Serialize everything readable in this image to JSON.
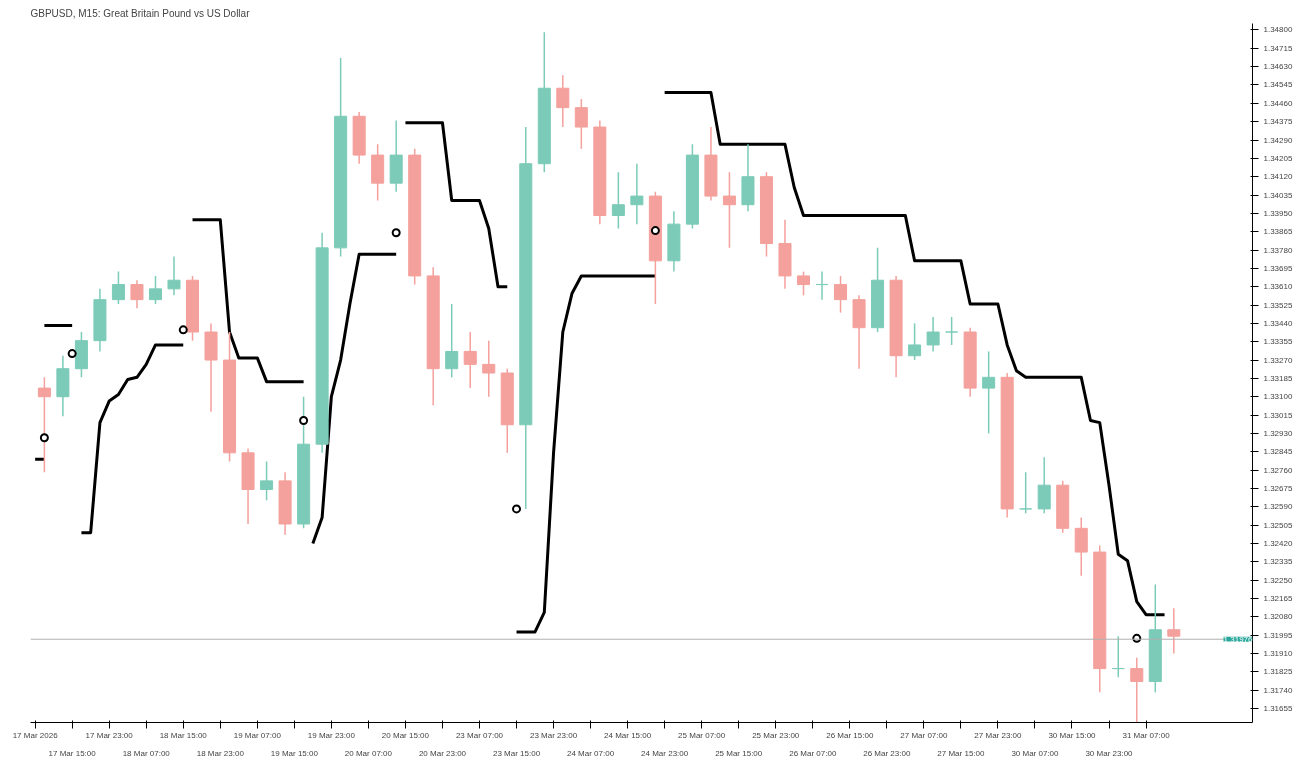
{
  "chart_data": {
    "type": "candlestick",
    "title": "GBPUSD, M15: Great Britain Pound vs US Dollar",
    "categories": [
      "17 Mar 2026",
      null,
      null,
      null,
      "17 Mar 15:00",
      null,
      null,
      null,
      "17 Mar 23:00",
      null,
      null,
      null,
      "18 Mar 07:00",
      null,
      null,
      null,
      "18 Mar 15:00",
      null,
      null,
      null,
      "18 Mar 23:00",
      null,
      null,
      null,
      "19 Mar 07:00",
      null,
      null,
      null,
      "19 Mar 15:00",
      null,
      null,
      null,
      "19 Mar 23:00",
      null,
      null,
      null,
      "20 Mar 07:00",
      null,
      null,
      null,
      "20 Mar 15:00",
      null,
      null,
      null,
      "20 Mar 23:00",
      null,
      null,
      null,
      "23 Mar 07:00",
      null,
      null,
      null,
      "23 Mar 15:00",
      null,
      null,
      null,
      "23 Mar 23:00",
      null,
      null,
      null,
      "24 Mar 07:00",
      null,
      null,
      null,
      "24 Mar 15:00",
      null,
      null,
      null,
      "24 Mar 23:00",
      null,
      null,
      null,
      "25 Mar 07:00",
      null,
      null,
      null,
      "25 Mar 15:00",
      null,
      null,
      null,
      "25 Mar 23:00",
      null,
      null,
      null,
      "26 Mar 07:00",
      null,
      null,
      null,
      "26 Mar 15:00",
      null,
      null,
      null,
      "26 Mar 23:00",
      null,
      null,
      null,
      "27 Mar 07:00",
      null,
      null,
      null,
      "27 Mar 15:00",
      null,
      null,
      null,
      "27 Mar 23:00",
      null,
      null,
      null,
      "30 Mar 07:00",
      null,
      null,
      null,
      "30 Mar 15:00",
      null,
      null,
      null,
      "30 Mar 23:00",
      null,
      null,
      null,
      "31 Mar 07:00",
      null,
      null,
      null,
      null,
      null,
      null,
      null,
      null,
      null,
      null,
      null
    ],
    "ohlc": [
      null,
      [
        1.3314,
        1.3319,
        1.3275,
        1.331
      ],
      null,
      [
        1.331,
        1.3329,
        1.3301,
        1.3323
      ],
      null,
      [
        1.3323,
        1.334,
        1.3319,
        1.3336
      ],
      null,
      [
        1.3336,
        1.336,
        1.3331,
        1.3355
      ],
      null,
      [
        1.3355,
        1.3368,
        1.3353,
        1.3362
      ],
      null,
      [
        1.3362,
        1.3364,
        1.3351,
        1.3355
      ],
      null,
      [
        1.3355,
        1.3366,
        1.3353,
        1.336
      ],
      null,
      [
        1.336,
        1.3375,
        1.3357,
        1.3364
      ],
      null,
      [
        1.3364,
        1.3366,
        1.3336,
        1.334
      ],
      null,
      [
        1.334,
        1.3344,
        1.3303,
        1.3327
      ],
      null,
      [
        1.3327,
        1.334,
        1.328,
        1.3284
      ],
      null,
      [
        1.3284,
        1.3286,
        1.3251,
        1.3267
      ],
      null,
      [
        1.3267,
        1.328,
        1.3262,
        1.3271
      ],
      null,
      [
        1.3271,
        1.3275,
        1.3246,
        1.3251
      ],
      null,
      [
        1.3251,
        1.331,
        1.3249,
        1.3288
      ],
      null,
      [
        1.3288,
        1.3386,
        1.3284,
        1.3379
      ],
      null,
      [
        1.3379,
        1.3467,
        1.3375,
        1.344
      ],
      null,
      [
        1.344,
        1.3442,
        1.3418,
        1.3422
      ],
      null,
      [
        1.3422,
        1.3427,
        1.3401,
        1.3409
      ],
      null,
      [
        1.3409,
        1.3438,
        1.3405,
        1.3422
      ],
      null,
      [
        1.3422,
        1.3425,
        1.3362,
        1.3366
      ],
      null,
      [
        1.3366,
        1.337,
        1.3306,
        1.3323
      ],
      null,
      [
        1.3323,
        1.3353,
        1.3319,
        1.3331
      ],
      null,
      [
        1.3331,
        1.334,
        1.3314,
        1.3325
      ],
      null,
      [
        1.3325,
        1.3336,
        1.331,
        1.3321
      ],
      null,
      [
        1.3321,
        1.3323,
        1.3284,
        1.3297
      ],
      null,
      [
        1.3297,
        1.3435,
        1.3258,
        1.3418
      ],
      null,
      [
        1.3418,
        1.3479,
        1.3414,
        1.3453
      ],
      null,
      [
        1.3453,
        1.3459,
        1.3435,
        1.3444
      ],
      null,
      [
        1.3444,
        1.3448,
        1.3425,
        1.3435
      ],
      null,
      [
        1.3435,
        1.3438,
        1.339,
        1.3394
      ],
      null,
      [
        1.3394,
        1.3414,
        1.3388,
        1.3399
      ],
      null,
      [
        1.3399,
        1.3418,
        1.339,
        1.3403
      ],
      null,
      [
        1.3403,
        1.3405,
        1.3353,
        1.3373
      ],
      null,
      [
        1.3373,
        1.3396,
        1.3368,
        1.339
      ],
      null,
      [
        1.339,
        1.3427,
        1.3388,
        1.3422
      ],
      null,
      [
        1.3422,
        1.3435,
        1.3401,
        1.3403
      ],
      null,
      [
        1.3403,
        1.3414,
        1.3379,
        1.3399
      ],
      null,
      [
        1.3399,
        1.3427,
        1.3396,
        1.3412
      ],
      null,
      [
        1.3412,
        1.3414,
        1.3375,
        1.3381
      ],
      null,
      [
        1.3381,
        1.3392,
        1.336,
        1.3366
      ],
      null,
      [
        1.3366,
        1.3368,
        1.3357,
        1.3362
      ],
      null,
      [
        1.3362,
        1.3368,
        1.3355,
        1.3362
      ],
      null,
      [
        1.3362,
        1.3366,
        1.3349,
        1.3355
      ],
      null,
      [
        1.3355,
        1.3357,
        1.3323,
        1.3342
      ],
      null,
      [
        1.3342,
        1.3379,
        1.334,
        1.3364
      ],
      null,
      [
        1.3364,
        1.3366,
        1.3319,
        1.3329
      ],
      null,
      [
        1.3329,
        1.3344,
        1.3327,
        1.3334
      ],
      null,
      [
        1.3334,
        1.3347,
        1.3331,
        1.334
      ],
      null,
      [
        1.334,
        1.3347,
        1.3334,
        1.334
      ],
      null,
      [
        1.334,
        1.3342,
        1.331,
        1.3314
      ],
      null,
      [
        1.3314,
        1.3331,
        1.3293,
        1.3319
      ],
      null,
      [
        1.3319,
        1.3321,
        1.3254,
        1.3258
      ],
      null,
      [
        1.3258,
        1.3275,
        1.3256,
        1.3258
      ],
      null,
      [
        1.3258,
        1.3282,
        1.3256,
        1.3269
      ],
      null,
      [
        1.3269,
        1.3271,
        1.3247,
        1.3249
      ],
      null,
      [
        1.3249,
        1.3254,
        1.3227,
        1.3238
      ],
      null,
      [
        1.3238,
        1.3241,
        1.3173,
        1.3184
      ],
      null,
      [
        1.3184,
        1.3199,
        1.318,
        1.3184
      ],
      null,
      [
        1.3184,
        1.3189,
        1.3159,
        1.3178
      ],
      null,
      [
        1.3178,
        1.3223,
        1.3173,
        1.3202
      ],
      null,
      [
        1.3202,
        1.3212,
        1.3191,
        1.3199
      ],
      null,
      null,
      null,
      null,
      null,
      null,
      null,
      null
    ],
    "colors": [
      null,
      "#f4a09c",
      null,
      "#7ccbb8",
      null,
      "#7ccbb8",
      null,
      "#7ccbb8",
      null,
      "#7ccbb8",
      null,
      "#f4a09c",
      null,
      "#7ccbb8",
      null,
      "#7ccbb8",
      null,
      "#f4a09c",
      null,
      "#f4a09c",
      null,
      "#f4a09c",
      null,
      "#f4a09c",
      null,
      "#7ccbb8",
      null,
      "#f4a09c",
      null,
      "#7ccbb8",
      null,
      "#7ccbb8",
      null,
      "#7ccbb8",
      null,
      "#f4a09c",
      null,
      "#f4a09c",
      null,
      "#7ccbb8",
      null,
      "#f4a09c",
      null,
      "#f4a09c",
      null,
      "#7ccbb8",
      null,
      "#f4a09c",
      null,
      "#f4a09c",
      null,
      "#f4a09c",
      null,
      "#7ccbb8",
      null,
      "#7ccbb8",
      null,
      "#f4a09c",
      null,
      "#f4a09c",
      null,
      "#f4a09c",
      null,
      "#7ccbb8",
      null,
      "#7ccbb8",
      null,
      "#f4a09c",
      null,
      "#7ccbb8",
      null,
      "#7ccbb8",
      null,
      "#f4a09c",
      null,
      "#f4a09c",
      null,
      "#7ccbb8",
      null,
      "#f4a09c",
      null,
      "#f4a09c",
      null,
      "#f4a09c",
      null,
      "#7ccbb8",
      null,
      "#f4a09c",
      null,
      "#f4a09c",
      null,
      "#7ccbb8",
      null,
      "#f4a09c",
      null,
      "#7ccbb8",
      null,
      "#7ccbb8",
      null,
      "#7ccbb8",
      null,
      "#f4a09c",
      null,
      "#7ccbb8",
      null,
      "#f4a09c",
      null,
      "#7ccbb8",
      null,
      "#7ccbb8",
      null,
      "#f4a09c",
      null,
      "#f4a09c",
      null,
      "#f4a09c",
      null,
      "#7ccbb8",
      null,
      "#f4a09c",
      null,
      "#7ccbb8",
      null,
      "#f4a09c",
      null,
      null,
      null,
      null,
      null,
      null,
      null,
      null
    ],
    "series": [
      {
        "type": "line",
        "color": "#000000",
        "values": [
          1.3281,
          1.3281,
          null,
          null,
          null,
          1.3247,
          1.3247,
          1.3298,
          1.3308,
          1.3311,
          1.3318,
          1.3319,
          1.3325,
          1.3334,
          1.3334,
          1.3334,
          1.3334,
          null,
          null,
          null,
          null,
          null,
          null,
          null,
          null,
          null,
          null,
          null,
          null,
          null,
          1.3242,
          1.3254,
          1.331,
          1.3327,
          1.3353,
          1.3376,
          1.3376,
          1.3376,
          1.3376,
          1.3376,
          null,
          null,
          null,
          null,
          null,
          null,
          null,
          null,
          null,
          null,
          null,
          null,
          1.3201,
          1.3201,
          1.3201,
          1.321,
          1.3284,
          1.334,
          1.3358,
          1.3366,
          1.3366,
          1.3366,
          1.3366,
          1.3366,
          1.3366,
          1.3366,
          1.3366,
          1.3366,
          null,
          null,
          null,
          null,
          null,
          null,
          null,
          null,
          null,
          null,
          null,
          null,
          null,
          null,
          null,
          null,
          null,
          null,
          null,
          null,
          null,
          null,
          null,
          null,
          null,
          null,
          null,
          null,
          null,
          null,
          null,
          null,
          null,
          null,
          null,
          null,
          null,
          null,
          null,
          null,
          null,
          null,
          null,
          null,
          null,
          null,
          null,
          null,
          null,
          null,
          null,
          null,
          null,
          null,
          null,
          null,
          null,
          null,
          null,
          null,
          null,
          null,
          null,
          null
        ]
      },
      {
        "type": "line",
        "color": "#000000",
        "values": [
          null,
          1.3343,
          1.3343,
          1.3343,
          1.3343,
          null,
          null,
          null,
          null,
          null,
          null,
          null,
          null,
          null,
          null,
          null,
          null,
          1.3392,
          1.3392,
          1.3392,
          1.3392,
          1.334,
          1.3328,
          1.3328,
          1.3328,
          1.3317,
          1.3317,
          1.3317,
          1.3317,
          1.3317,
          null,
          null,
          null,
          null,
          null,
          null,
          null,
          null,
          null,
          null,
          1.3437,
          1.3437,
          1.3437,
          1.3437,
          1.3437,
          1.3401,
          1.3401,
          1.3401,
          1.3401,
          1.3388,
          1.3361,
          1.3361,
          null,
          null,
          null,
          null,
          null,
          null,
          null,
          null,
          null,
          null,
          null,
          null,
          null,
          null,
          null,
          null,
          1.3451,
          1.3451,
          1.3451,
          1.3451,
          1.3451,
          1.3451,
          1.3427,
          1.3427,
          1.3427,
          1.3427,
          1.3427,
          1.3427,
          1.3427,
          1.3427,
          1.3407,
          1.3394,
          1.3394,
          1.3394,
          1.3394,
          1.3394,
          1.3394,
          1.3394,
          1.3394,
          1.3394,
          1.3394,
          1.3394,
          1.3394,
          1.3373,
          1.3373,
          1.3373,
          1.3373,
          1.3373,
          1.3373,
          1.3353,
          1.3353,
          1.3353,
          1.3353,
          1.3334,
          1.3322,
          1.3319,
          1.3319,
          1.3319,
          1.3319,
          1.3319,
          1.3319,
          1.3319,
          1.3299,
          1.3298,
          1.3269,
          1.3237,
          1.3234,
          1.3215,
          1.3209,
          1.3209,
          1.3209,
          null,
          null,
          null,
          null,
          null,
          null,
          null,
          null,
          null
        ]
      },
      {
        "type": "scatter",
        "color": "#000000",
        "marker": "circle",
        "values": [
          null,
          1.3291,
          null,
          null,
          1.333,
          null,
          null,
          null,
          null,
          null,
          null,
          null,
          null,
          null,
          null,
          null,
          1.3341,
          null,
          null,
          null,
          null,
          null,
          null,
          null,
          null,
          null,
          null,
          null,
          null,
          1.3299,
          null,
          null,
          null,
          null,
          null,
          null,
          null,
          null,
          null,
          1.3386,
          null,
          null,
          null,
          null,
          null,
          null,
          null,
          null,
          null,
          null,
          null,
          null,
          1.3258,
          null,
          null,
          null,
          null,
          null,
          null,
          null,
          null,
          null,
          null,
          null,
          null,
          null,
          null,
          1.3387,
          null,
          null,
          null,
          null,
          null,
          null,
          null,
          null,
          null,
          null,
          null,
          null,
          null,
          null,
          null,
          null,
          null,
          null,
          null,
          null,
          null,
          null,
          null,
          null,
          null,
          null,
          null,
          null,
          null,
          null,
          null,
          null,
          null,
          null,
          null,
          null,
          null,
          null,
          null,
          null,
          null,
          null,
          null,
          null,
          null,
          null,
          null,
          null,
          null,
          null,
          null,
          1.3198,
          null,
          null,
          null,
          null,
          null,
          null,
          null,
          null,
          null,
          null,
          null,
          null
        ]
      }
    ],
    "ref_lines": [
      {
        "axis": "y",
        "value": 1.31976,
        "label": "1.31976",
        "color": "#b0b0b0"
      }
    ],
    "ylim": [
      1.3159,
      1.3483
    ],
    "yticks": [
      {
        "value": 1.31655,
        "label": "1.31655"
      },
      {
        "value": 1.3174,
        "label": "1.31740"
      },
      {
        "value": 1.31825,
        "label": "1.31825"
      },
      {
        "value": 1.3191,
        "label": "1.31910"
      },
      {
        "value": 1.31995,
        "label": "1.31995"
      },
      {
        "value": 1.3208,
        "label": "1.32080"
      },
      {
        "value": 1.32165,
        "label": "1.32165"
      },
      {
        "value": 1.3225,
        "label": "1.32250"
      },
      {
        "value": 1.32335,
        "label": "1.32335"
      },
      {
        "value": 1.3242,
        "label": "1.32420"
      },
      {
        "value": 1.32505,
        "label": "1.32505"
      },
      {
        "value": 1.3259,
        "label": "1.32590"
      },
      {
        "value": 1.32675,
        "label": "1.32675"
      },
      {
        "value": 1.3276,
        "label": "1.32760"
      },
      {
        "value": 1.32845,
        "label": "1.32845"
      },
      {
        "value": 1.3293,
        "label": "1.32930"
      },
      {
        "value": 1.33015,
        "label": "1.33015"
      },
      {
        "value": 1.331,
        "label": "1.33100"
      },
      {
        "value": 1.33185,
        "label": "1.33185"
      },
      {
        "value": 1.3327,
        "label": "1.33270"
      },
      {
        "value": 1.33355,
        "label": "1.33355"
      },
      {
        "value": 1.3344,
        "label": "1.33440"
      },
      {
        "value": 1.33525,
        "label": "1.33525"
      },
      {
        "value": 1.3361,
        "label": "1.33610"
      },
      {
        "value": 1.33695,
        "label": "1.33695"
      },
      {
        "value": 1.3378,
        "label": "1.33780"
      },
      {
        "value": 1.33865,
        "label": "1.33865"
      },
      {
        "value": 1.3395,
        "label": "1.33950"
      },
      {
        "value": 1.34035,
        "label": "1.34035"
      },
      {
        "value": 1.3412,
        "label": "1.34120"
      },
      {
        "value": 1.34205,
        "label": "1.34205"
      },
      {
        "value": 1.3429,
        "label": "1.34290"
      },
      {
        "value": 1.34375,
        "label": "1.34375"
      },
      {
        "value": 1.3446,
        "label": "1.34460"
      },
      {
        "value": 1.34545,
        "label": "1.34545"
      },
      {
        "value": 1.3463,
        "label": "1.34630"
      },
      {
        "value": 1.34715,
        "label": "1.34715"
      },
      {
        "value": 1.348,
        "label": "1.34800"
      }
    ]
  }
}
